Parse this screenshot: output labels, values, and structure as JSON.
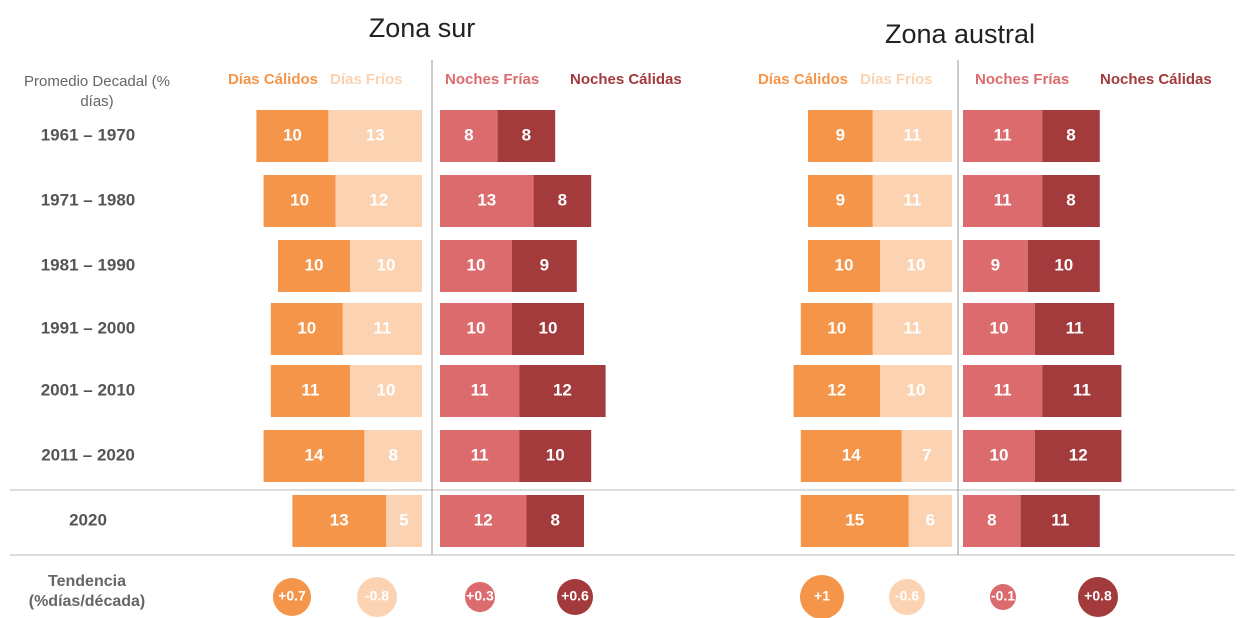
{
  "row_header": "Promedio Decadal (% días)",
  "rows": [
    "1961 – 1970",
    "1971 – 1980",
    "1981 – 1990",
    "1991 – 2000",
    "2001 – 2010",
    "2011 – 2020",
    "2020"
  ],
  "trend_header": "Tendencia (%días/década)",
  "zones": [
    {
      "title": "Zona sur",
      "panels": [
        {
          "series": [
            {
              "name": "Días Cálidos",
              "color": "#f4954a",
              "values": [
                10,
                10,
                10,
                10,
                11,
                14,
                13
              ],
              "trend": 0.7,
              "trend_label": "+0.7"
            },
            {
              "name": "Días Fríos",
              "color": "#fbd3b2",
              "values": [
                13,
                12,
                10,
                11,
                10,
                8,
                5
              ],
              "trend": -0.8,
              "trend_label": "-0.8"
            }
          ]
        },
        {
          "series": [
            {
              "name": "Noches Frías",
              "color": "#dc6b6e",
              "values": [
                8,
                13,
                10,
                10,
                11,
                11,
                12
              ],
              "trend": 0.3,
              "trend_label": "+0.3"
            },
            {
              "name": "Noches Cálidas",
              "color": "#a33a3c",
              "values": [
                8,
                8,
                9,
                10,
                12,
                10,
                8
              ],
              "trend": 0.6,
              "trend_label": "+0.6"
            }
          ]
        }
      ]
    },
    {
      "title": "Zona austral",
      "panels": [
        {
          "series": [
            {
              "name": "Días Cálidos",
              "color": "#f4954a",
              "values": [
                9,
                9,
                10,
                10,
                12,
                14,
                15
              ],
              "trend": 1,
              "trend_label": "+1"
            },
            {
              "name": "Días Fríos",
              "color": "#fbd3b2",
              "values": [
                11,
                11,
                10,
                11,
                10,
                7,
                6
              ],
              "trend": -0.6,
              "trend_label": "-0.6"
            }
          ]
        },
        {
          "series": [
            {
              "name": "Noches Frías",
              "color": "#dc6b6e",
              "values": [
                11,
                11,
                9,
                10,
                11,
                10,
                8
              ],
              "trend": -0.1,
              "trend_label": "-0.1"
            },
            {
              "name": "Noches Cálidas",
              "color": "#a33a3c",
              "values": [
                8,
                8,
                10,
                11,
                11,
                12,
                11
              ],
              "trend": 0.8,
              "trend_label": "+0.8"
            }
          ]
        }
      ]
    }
  ]
}
